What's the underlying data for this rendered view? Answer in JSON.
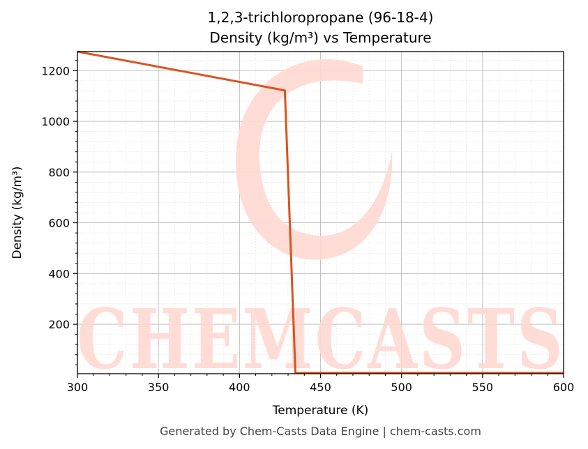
{
  "chart_data": {
    "type": "line",
    "title": "1,2,3-trichloropropane (96-18-4)",
    "subtitle": "Density (kg/m³) vs Temperature",
    "xlabel": "Temperature (K)",
    "ylabel": "Density (kg/m³)",
    "xlim": [
      300,
      600
    ],
    "ylim": [
      5,
      1275
    ],
    "xticks": [
      300,
      350,
      400,
      450,
      500,
      550,
      600
    ],
    "yticks": [
      200,
      400,
      600,
      800,
      1000,
      1200
    ],
    "grid": true,
    "series": [
      {
        "color": "#d9531e",
        "x": [
          300,
          428,
          434.5,
          600
        ],
        "y": [
          1275,
          1122,
          8,
          8
        ]
      }
    ]
  },
  "watermark": "CHEMCASTS",
  "footer": "Generated by Chem-Casts Data Engine | chem-casts.com"
}
